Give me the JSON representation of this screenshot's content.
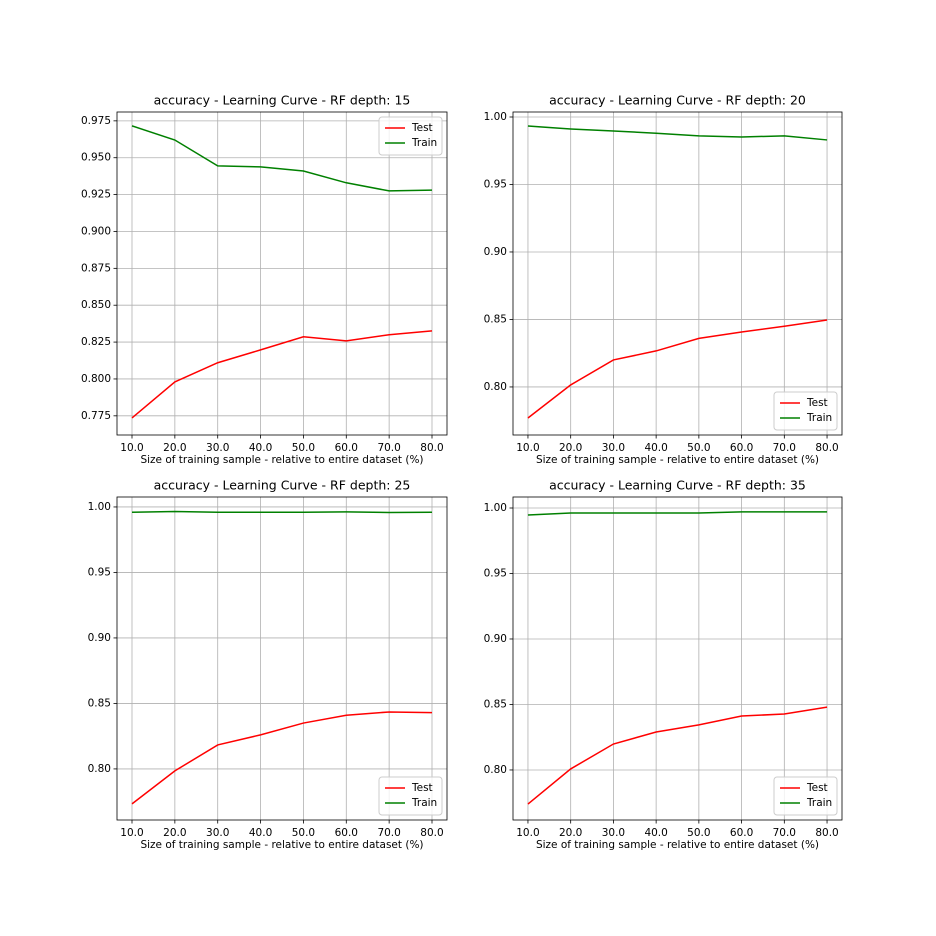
{
  "chart_data": [
    {
      "type": "line",
      "title": "accuracy - Learning Curve - RF depth: 15",
      "xlabel": "Size of training sample - relative to entire dataset (%)",
      "x": [
        10,
        20,
        30,
        40,
        50,
        60,
        70,
        80
      ],
      "series": [
        {
          "name": "Test",
          "color": "#ff0000",
          "values": [
            0.7736,
            0.798,
            0.811,
            0.8197,
            0.8286,
            0.8258,
            0.83,
            0.8326
          ]
        },
        {
          "name": "Train",
          "color": "#008000",
          "values": [
            0.9716,
            0.962,
            0.9445,
            0.9438,
            0.941,
            0.933,
            0.9275,
            0.928
          ]
        }
      ],
      "xlim": [
        6.5,
        83.5
      ],
      "ylim": [
        0.762,
        0.981
      ],
      "xticks": [
        {
          "value": 10,
          "label": "10.0"
        },
        {
          "value": 20,
          "label": "20.0"
        },
        {
          "value": 30,
          "label": "30.0"
        },
        {
          "value": 40,
          "label": "40.0"
        },
        {
          "value": 50,
          "label": "50.0"
        },
        {
          "value": 60,
          "label": "60.0"
        },
        {
          "value": 70,
          "label": "70.0"
        },
        {
          "value": 80,
          "label": "80.0"
        }
      ],
      "yticks": [
        0.775,
        {
          "value": 0.8,
          "label": "0.800"
        },
        0.825,
        {
          "value": 0.85,
          "label": "0.850"
        },
        0.875,
        {
          "value": 0.9,
          "label": "0.900"
        },
        0.925,
        {
          "value": 0.95,
          "label": "0.950"
        },
        0.975
      ],
      "grid": true,
      "legend": "upper right"
    },
    {
      "type": "line",
      "title": "accuracy - Learning Curve - RF depth: 20",
      "xlabel": "Size of training sample - relative to entire dataset (%)",
      "x": [
        10,
        20,
        30,
        40,
        50,
        60,
        70,
        80
      ],
      "series": [
        {
          "name": "Test",
          "color": "#ff0000",
          "values": [
            0.777,
            0.8015,
            0.82,
            0.8267,
            0.836,
            0.8407,
            0.845,
            0.8496
          ]
        },
        {
          "name": "Train",
          "color": "#008000",
          "values": [
            0.9933,
            0.9911,
            0.9896,
            0.988,
            0.986,
            0.9852,
            0.986,
            0.983
          ]
        }
      ],
      "xlim": [
        6.5,
        83.5
      ],
      "ylim": [
        0.7644,
        1.0037
      ],
      "xticks": [
        {
          "value": 10,
          "label": "10.0"
        },
        {
          "value": 20,
          "label": "20.0"
        },
        {
          "value": 30,
          "label": "30.0"
        },
        {
          "value": 40,
          "label": "40.0"
        },
        {
          "value": 50,
          "label": "50.0"
        },
        {
          "value": 60,
          "label": "60.0"
        },
        {
          "value": 70,
          "label": "70.0"
        },
        {
          "value": 80,
          "label": "80.0"
        }
      ],
      "yticks": [
        {
          "value": 0.8,
          "label": "0.80"
        },
        0.85,
        {
          "value": 0.9,
          "label": "0.90"
        },
        0.95,
        {
          "value": 1,
          "label": "1.00"
        }
      ],
      "grid": true,
      "legend": "lower right"
    },
    {
      "type": "line",
      "title": "accuracy - Learning Curve - RF depth: 25",
      "xlabel": "Size of training sample - relative to entire dataset (%)",
      "x": [
        10,
        20,
        30,
        40,
        50,
        60,
        70,
        80
      ],
      "series": [
        {
          "name": "Test",
          "color": "#ff0000",
          "values": [
            0.7733,
            0.7985,
            0.8183,
            0.826,
            0.835,
            0.841,
            0.8435,
            0.843
          ]
        },
        {
          "name": "Train",
          "color": "#008000",
          "values": [
            0.996,
            0.9965,
            0.996,
            0.996,
            0.996,
            0.9962,
            0.9958,
            0.996
          ]
        }
      ],
      "xlim": [
        6.5,
        83.5
      ],
      "ylim": [
        0.761,
        1.0076
      ],
      "xticks": [
        {
          "value": 10,
          "label": "10.0"
        },
        {
          "value": 20,
          "label": "20.0"
        },
        {
          "value": 30,
          "label": "30.0"
        },
        {
          "value": 40,
          "label": "40.0"
        },
        {
          "value": 50,
          "label": "50.0"
        },
        {
          "value": 60,
          "label": "60.0"
        },
        {
          "value": 70,
          "label": "70.0"
        },
        {
          "value": 80,
          "label": "80.0"
        }
      ],
      "yticks": [
        {
          "value": 0.8,
          "label": "0.80"
        },
        0.85,
        {
          "value": 0.9,
          "label": "0.90"
        },
        0.95,
        {
          "value": 1,
          "label": "1.00"
        }
      ],
      "grid": true,
      "legend": "lower right"
    },
    {
      "type": "line",
      "title": "accuracy - Learning Curve - RF depth: 35",
      "xlabel": "Size of training sample - relative to entire dataset (%)",
      "x": [
        10,
        20,
        30,
        40,
        50,
        60,
        70,
        80
      ],
      "series": [
        {
          "name": "Test",
          "color": "#ff0000",
          "values": [
            0.774,
            0.8008,
            0.8198,
            0.829,
            0.8344,
            0.8412,
            0.8427,
            0.848
          ]
        },
        {
          "name": "Train",
          "color": "#008000",
          "values": [
            0.9947,
            0.9962,
            0.9962,
            0.9962,
            0.9962,
            0.997,
            0.997,
            0.997
          ]
        }
      ],
      "xlim": [
        6.5,
        83.5
      ],
      "ylim": [
        0.7618,
        1.0084
      ],
      "xticks": [
        {
          "value": 10,
          "label": "10.0"
        },
        {
          "value": 20,
          "label": "20.0"
        },
        {
          "value": 30,
          "label": "30.0"
        },
        {
          "value": 40,
          "label": "40.0"
        },
        {
          "value": 50,
          "label": "50.0"
        },
        {
          "value": 60,
          "label": "60.0"
        },
        {
          "value": 70,
          "label": "70.0"
        },
        {
          "value": 80,
          "label": "80.0"
        }
      ],
      "yticks": [
        {
          "value": 0.8,
          "label": "0.80"
        },
        0.85,
        {
          "value": 0.9,
          "label": "0.90"
        },
        0.95,
        {
          "value": 1,
          "label": "1.00"
        }
      ],
      "grid": true,
      "legend": "lower right"
    }
  ]
}
